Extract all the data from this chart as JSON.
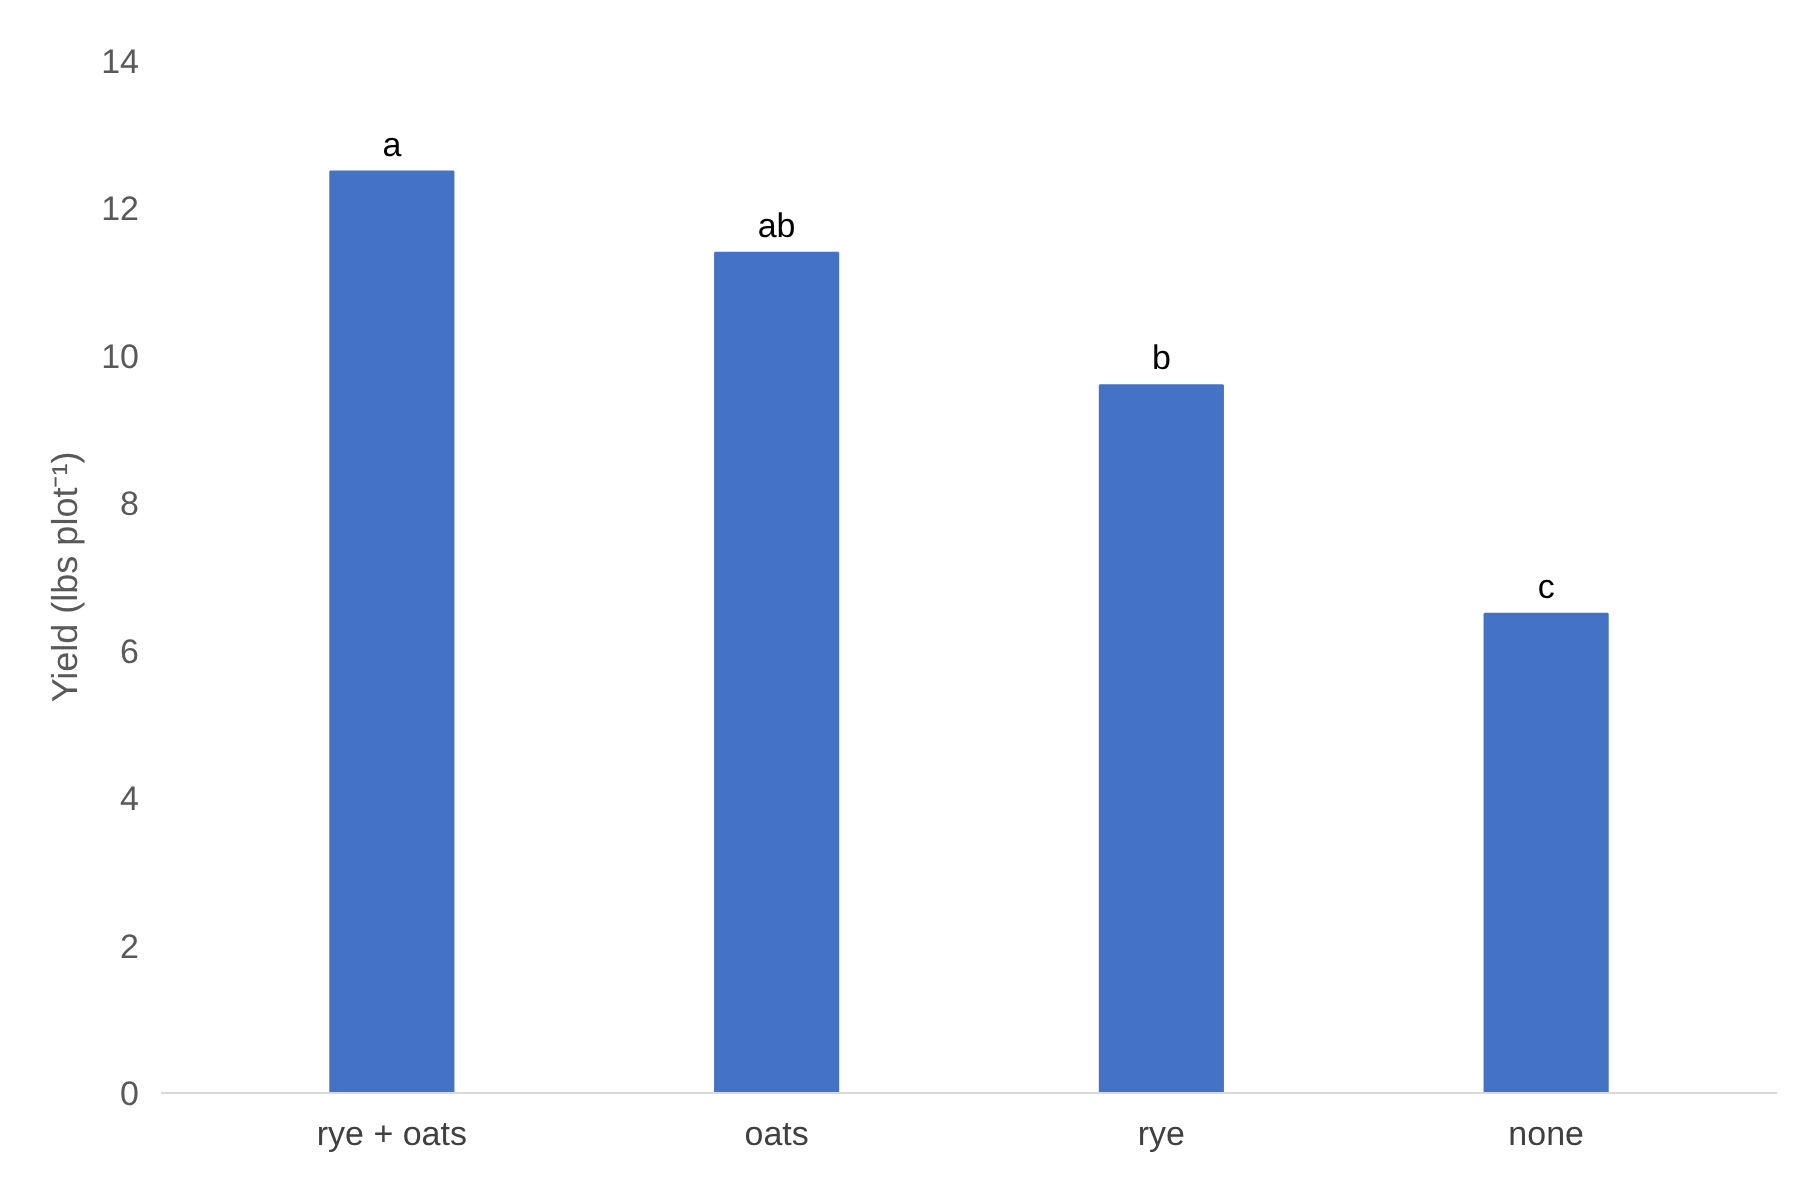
{
  "chart_data": {
    "type": "bar",
    "ylabel": "Yield (lbs plot⁻¹)",
    "categories": [
      "rye + oats",
      "oats",
      "rye",
      "none"
    ],
    "values": [
      12.5,
      11.4,
      9.6,
      6.5
    ],
    "color": "#4472c4",
    "ylim": [
      0,
      14
    ],
    "yticks": [
      0,
      2,
      4,
      6,
      8,
      10,
      12,
      14
    ],
    "grid": false,
    "annotations": [
      {
        "text": "a",
        "x": "rye + oats",
        "y": 12.5
      },
      {
        "text": "ab",
        "x": "oats",
        "y": 11.4
      },
      {
        "text": "b",
        "x": "rye",
        "y": 9.6
      },
      {
        "text": "c",
        "x": "none",
        "y": 6.5
      }
    ]
  }
}
